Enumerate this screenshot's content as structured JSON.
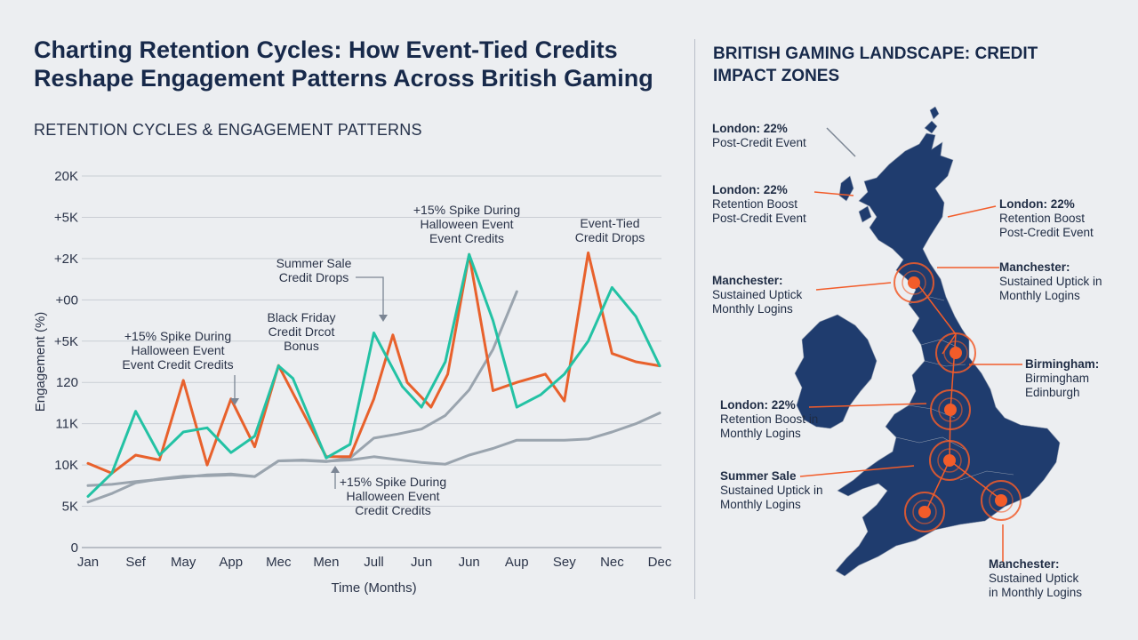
{
  "header": {
    "title": "Charting Retention Cycles: How Event-Tied Credits Reshape Engagement Patterns Across British Gaming",
    "subtitle": "RETENTION CYCLES & ENGAGEMENT PATTERNS"
  },
  "chart_data": {
    "type": "line",
    "xlabel": "Time (Months)",
    "ylabel": "Engagement (%)",
    "categories": [
      "Jan",
      "Sef",
      "May",
      "App",
      "Mec",
      "Men",
      "Jull",
      "Jun",
      "Jun",
      "Aup",
      "Sey",
      "Nec",
      "Dec"
    ],
    "y_tick_labels": [
      "0",
      "5K",
      "10K",
      "11K",
      "120",
      "+5K",
      "+00",
      "+2K",
      "+5K",
      "20K"
    ],
    "ylim": [
      0,
      9
    ],
    "grid": true,
    "series": [
      {
        "color": "#e8612c",
        "x": [
          0,
          0.5,
          1,
          1.5,
          2,
          2.5,
          3,
          3.5,
          4,
          4.5,
          5,
          5.5,
          6,
          6.4,
          6.7,
          7.2,
          7.55,
          8,
          8.5,
          9,
          9.6,
          10,
          10.5,
          11,
          11.5,
          12
        ],
        "y": [
          2.04,
          1.8,
          2.24,
          2.12,
          4.05,
          2.0,
          3.6,
          2.44,
          4.41,
          3.3,
          2.2,
          2.2,
          3.6,
          5.15,
          4.0,
          3.4,
          4.2,
          7.1,
          3.8,
          4.0,
          4.2,
          3.55,
          7.14,
          4.7,
          4.5,
          4.4
        ]
      },
      {
        "color": "#23c2a4",
        "x": [
          0,
          0.5,
          1,
          1.5,
          2,
          2.5,
          3,
          3.5,
          4,
          4.3,
          5,
          5.5,
          6,
          6.6,
          7,
          7.5,
          8,
          8.5,
          9,
          9.5,
          10,
          10.5,
          11,
          11.5,
          12
        ],
        "y": [
          1.24,
          1.8,
          3.3,
          2.24,
          2.8,
          2.9,
          2.3,
          2.7,
          4.4,
          4.1,
          2.17,
          2.5,
          5.2,
          3.9,
          3.4,
          4.5,
          7.1,
          5.5,
          3.4,
          3.7,
          4.2,
          5.0,
          6.3,
          5.6,
          4.4
        ]
      },
      {
        "color": "#9aa4ae",
        "x": [
          0,
          0.5,
          1,
          1.5,
          2,
          2.5,
          3,
          3.5,
          4,
          4.5,
          5,
          5.5,
          6,
          6.5,
          7,
          7.5,
          8,
          8.5,
          9
        ],
        "y": [
          1.1,
          1.31,
          1.57,
          1.66,
          1.73,
          1.74,
          1.76,
          1.72,
          2.1,
          2.11,
          2.08,
          2.17,
          2.65,
          2.75,
          2.87,
          3.2,
          3.82,
          4.8,
          6.2
        ]
      },
      {
        "color": "#9aa4ae",
        "x": [
          0,
          0.5,
          1,
          1.5,
          2,
          2.5,
          3,
          3.5,
          4,
          4.5,
          5,
          5.5,
          6,
          6.5,
          7,
          7.5,
          8,
          8.5,
          9,
          9.5,
          10,
          10.5,
          11,
          11.5,
          12
        ],
        "y": [
          1.5,
          1.53,
          1.6,
          1.65,
          1.7,
          1.76,
          1.78,
          1.72,
          2.1,
          2.12,
          2.09,
          2.12,
          2.2,
          2.13,
          2.06,
          2.02,
          2.24,
          2.4,
          2.6,
          2.6,
          2.6,
          2.63,
          2.8,
          3.0,
          3.26
        ]
      }
    ],
    "annotations": [
      {
        "lines": [
          "+15% Spike During",
          "Halloween Event",
          "Event Credit Credits"
        ],
        "pointer": "down"
      },
      {
        "lines": [
          "Black Friday",
          "Credit Drcot",
          "Bonus"
        ]
      },
      {
        "lines": [
          "Summer Sale",
          "Credit Drops"
        ],
        "pointer": "bent"
      },
      {
        "lines": [
          "+15% Spike During",
          "Halloween Event",
          "Event Credits"
        ]
      },
      {
        "lines": [
          "Event-Tied",
          "Credit Drops"
        ]
      },
      {
        "lines": [
          "+15% Spike During",
          "Halloween Event",
          "Credit Credits"
        ],
        "pointer": "up"
      }
    ]
  },
  "map": {
    "title": "BRITISH GAMING LANDSCAPE: CREDIT IMPACT ZONES",
    "land_color": "#1f3c6e",
    "marker_color": "#f25c2a",
    "callouts": [
      {
        "head": "London: 22%",
        "body": [
          "Post-Credit Event"
        ]
      },
      {
        "head": "London: 22%",
        "body": [
          "Retention Boost",
          "Post-Credit Event"
        ]
      },
      {
        "head": "London: 22%",
        "body": [
          "Retention Boost",
          "Post-Credit Event"
        ]
      },
      {
        "head": "Manchester:",
        "body": [
          "Sustained Uptick",
          "Monthly Logins"
        ]
      },
      {
        "head": "Manchester:",
        "body": [
          "Sustained Uptick in",
          "Monthly Logins"
        ]
      },
      {
        "head": "Birmingham:",
        "body": [
          "Birmingham",
          "Edinburgh"
        ]
      },
      {
        "head": "London: 22%",
        "body": [
          "Retention Boost in",
          "Monthly Logins"
        ]
      },
      {
        "head": "Summer Sale",
        "body": [
          "Sustained Uptick in",
          "Monthly Logins"
        ]
      },
      {
        "head": "Manchester:",
        "body": [
          "Sustained Uptick",
          "in Monthly Logins"
        ]
      }
    ]
  }
}
